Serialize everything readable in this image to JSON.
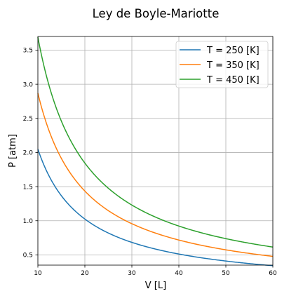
{
  "chart_data": {
    "type": "line",
    "title": "Ley de Boyle-Mariotte",
    "xlabel": "V [L]",
    "ylabel": "P [atm]",
    "xlim": [
      10,
      60
    ],
    "ylim": [
      0.35,
      3.7
    ],
    "xticks": [
      10,
      20,
      30,
      40,
      50,
      60
    ],
    "xtick_labels": [
      "10",
      "20",
      "30",
      "40",
      "50",
      "60"
    ],
    "yticks": [
      0.5,
      1.0,
      1.5,
      2.0,
      2.5,
      3.0,
      3.5
    ],
    "ytick_labels": [
      "0.5",
      "1.0",
      "1.5",
      "2.0",
      "2.5",
      "3.0",
      "3.5"
    ],
    "grid": true,
    "legend_position": "upper-right",
    "x": [
      10,
      12.5,
      15,
      17.5,
      20,
      25,
      30,
      35,
      40,
      45,
      50,
      55,
      60
    ],
    "series": [
      {
        "name": "T = 250 [K]",
        "color": "#1f77b4",
        "values": [
          2.05,
          1.64,
          1.37,
          1.17,
          1.03,
          0.82,
          0.68,
          0.59,
          0.51,
          0.46,
          0.41,
          0.37,
          0.34
        ]
      },
      {
        "name": "T = 350 [K]",
        "color": "#ff7f0e",
        "values": [
          2.87,
          2.3,
          1.92,
          1.64,
          1.44,
          1.15,
          0.96,
          0.82,
          0.72,
          0.64,
          0.57,
          0.52,
          0.48
        ]
      },
      {
        "name": "T = 450 [K]",
        "color": "#2ca02c",
        "values": [
          3.69,
          2.95,
          2.46,
          2.11,
          1.85,
          1.48,
          1.23,
          1.05,
          0.92,
          0.82,
          0.74,
          0.67,
          0.62
        ]
      }
    ]
  }
}
